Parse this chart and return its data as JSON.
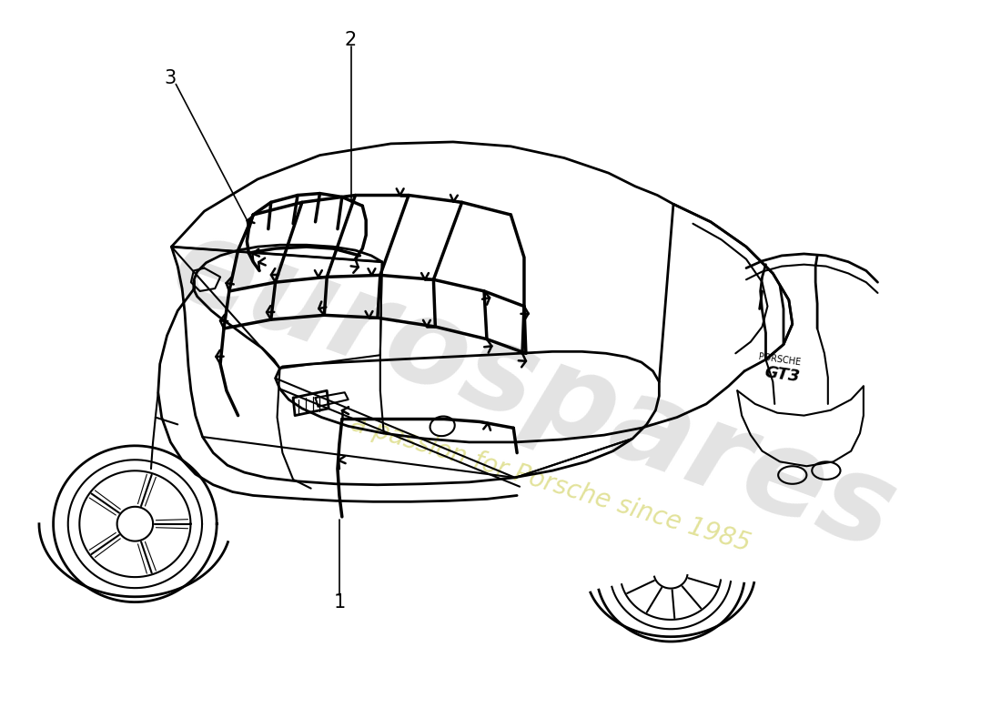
{
  "background_color": "#ffffff",
  "line_color": "#000000",
  "watermark_text1": "eurospares",
  "watermark_text2": "a passion for Porsche since 1985",
  "watermark_color1": "#cccccc",
  "watermark_color2": "#e8e8c0",
  "fig_width": 11.0,
  "fig_height": 8.0,
  "dpi": 100
}
